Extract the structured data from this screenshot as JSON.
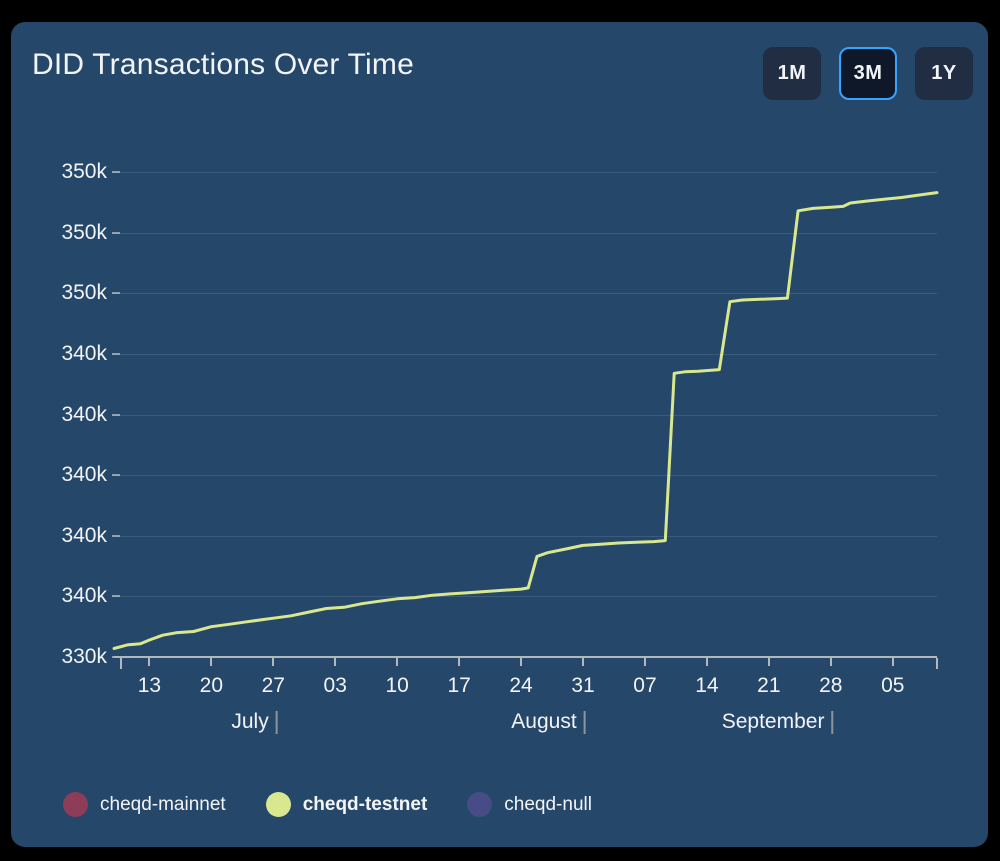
{
  "header": {
    "title": "DID Transactions Over Time",
    "range_buttons": [
      {
        "label": "1M",
        "active": false
      },
      {
        "label": "3M",
        "active": true
      },
      {
        "label": "1Y",
        "active": false
      }
    ]
  },
  "colors": {
    "background": "#000000",
    "card": "#254769",
    "accent_active_border": "#36a3ff",
    "line_testnet": "#d9e88f",
    "legend_mainnet": "#8e3d58",
    "legend_null": "#484c86",
    "axis": "#b2b8bf",
    "text": "#f2f4f8"
  },
  "chart_data": {
    "type": "line",
    "title": "DID Transactions Over Time",
    "selected_range": "3M",
    "y_axis": {
      "unit": "transactions",
      "tick_labels": [
        "350k",
        "350k",
        "350k",
        "340k",
        "340k",
        "340k",
        "340k",
        "340k",
        "330k"
      ],
      "tick_values_k": [
        350,
        347.5,
        345,
        342.5,
        340,
        337.5,
        335,
        332.5,
        330
      ],
      "range_k": [
        330,
        350
      ],
      "grid": true
    },
    "x_axis": {
      "tick_labels": [
        "13",
        "20",
        "27",
        "03",
        "10",
        "17",
        "24",
        "31",
        "07",
        "14",
        "21",
        "28",
        "05"
      ],
      "tick_days": [
        4,
        11,
        18,
        25,
        32,
        39,
        46,
        53,
        60,
        67,
        74,
        81,
        88
      ],
      "day_span": 93,
      "months": [
        {
          "label": "July",
          "bar_day": 18.5
        },
        {
          "label": "August",
          "bar_day": 53.3
        },
        {
          "label": "September",
          "bar_day": 81.3
        }
      ]
    },
    "legend": [
      {
        "label": "cheqd-mainnet",
        "color": "#8e3d58",
        "bold": false
      },
      {
        "label": "cheqd-testnet",
        "color": "#d9e88f",
        "bold": true
      },
      {
        "label": "cheqd-null",
        "color": "#484c86",
        "bold": false
      }
    ],
    "legend_position": "bottom-left",
    "series": [
      {
        "name": "cheqd-mainnet",
        "color": "#8e3d58",
        "visible_in_view": false,
        "points": []
      },
      {
        "name": "cheqd-testnet",
        "color": "#d9e88f",
        "visible_in_view": true,
        "points": [
          [
            0,
            330.35
          ],
          [
            1.5,
            330.5
          ],
          [
            3,
            330.55
          ],
          [
            4,
            330.7
          ],
          [
            5.5,
            330.9
          ],
          [
            7,
            331.0
          ],
          [
            9,
            331.05
          ],
          [
            11,
            331.25
          ],
          [
            13,
            331.35
          ],
          [
            15,
            331.45
          ],
          [
            17,
            331.55
          ],
          [
            18,
            331.6
          ],
          [
            20,
            331.7
          ],
          [
            22,
            331.85
          ],
          [
            24,
            332.0
          ],
          [
            26,
            332.05
          ],
          [
            28,
            332.2
          ],
          [
            30,
            332.3
          ],
          [
            32,
            332.4
          ],
          [
            34,
            332.45
          ],
          [
            36,
            332.55
          ],
          [
            38,
            332.6
          ],
          [
            40,
            332.65
          ],
          [
            42,
            332.7
          ],
          [
            44,
            332.75
          ],
          [
            46,
            332.8
          ],
          [
            46.8,
            332.85
          ],
          [
            47.8,
            334.15
          ],
          [
            49,
            334.3
          ],
          [
            51,
            334.45
          ],
          [
            53,
            334.6
          ],
          [
            55,
            334.65
          ],
          [
            57,
            334.7
          ],
          [
            59,
            334.73
          ],
          [
            61,
            334.76
          ],
          [
            62.3,
            334.8
          ],
          [
            63.3,
            341.7
          ],
          [
            64.5,
            341.76
          ],
          [
            66,
            341.78
          ],
          [
            68.4,
            341.85
          ],
          [
            69.6,
            344.65
          ],
          [
            71,
            344.72
          ],
          [
            73,
            344.75
          ],
          [
            75,
            344.78
          ],
          [
            76.1,
            344.8
          ],
          [
            77.3,
            348.4
          ],
          [
            79,
            348.5
          ],
          [
            81,
            348.55
          ],
          [
            82.4,
            348.58
          ],
          [
            83.2,
            348.72
          ],
          [
            85,
            348.8
          ],
          [
            87,
            348.88
          ],
          [
            89,
            348.95
          ],
          [
            91,
            349.05
          ],
          [
            93,
            349.15
          ]
        ]
      },
      {
        "name": "cheqd-null",
        "color": "#484c86",
        "visible_in_view": false,
        "points": []
      }
    ]
  }
}
